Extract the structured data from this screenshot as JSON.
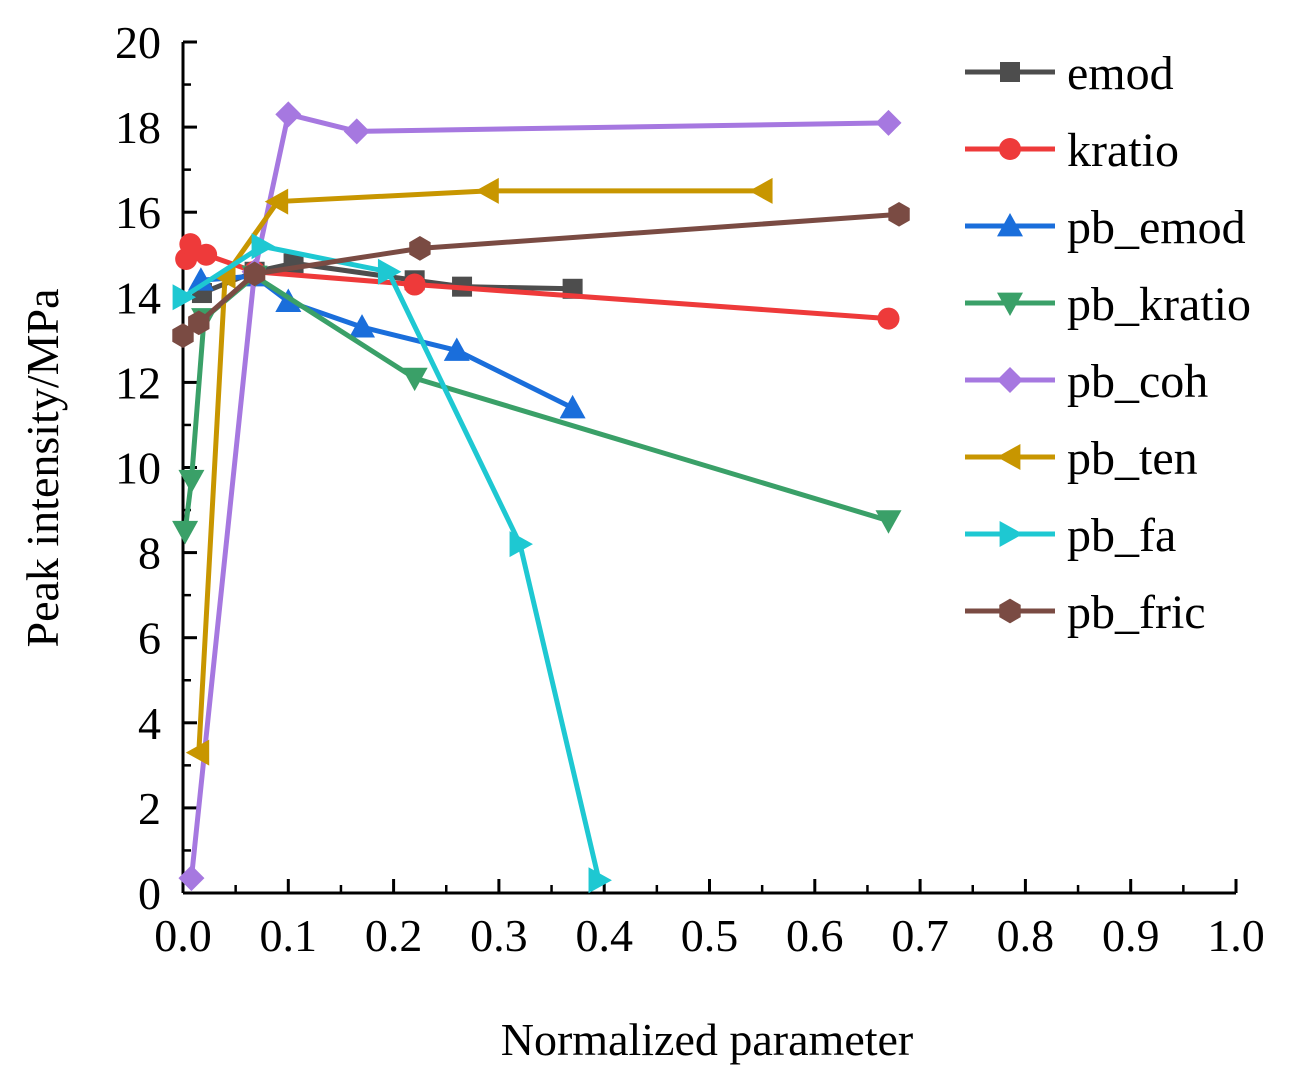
{
  "chart_data": {
    "type": "line",
    "xlabel": "Normalized parameter",
    "ylabel": "Peak intensity/MPa",
    "xlim": [
      0,
      1
    ],
    "ylim": [
      0,
      20
    ],
    "x_ticks": [
      "0.0",
      "0.1",
      "0.2",
      "0.3",
      "0.4",
      "0.5",
      "0.6",
      "0.7",
      "0.8",
      "0.9",
      "1.0"
    ],
    "y_ticks": [
      "0",
      "2",
      "4",
      "6",
      "8",
      "10",
      "12",
      "14",
      "16",
      "18",
      "20"
    ],
    "legend_position": "right",
    "grid": false,
    "series": [
      {
        "name": "emod",
        "color": "#4d4d4d",
        "marker": "square",
        "points": [
          [
            0.018,
            14.1
          ],
          [
            0.068,
            14.6
          ],
          [
            0.105,
            14.8
          ],
          [
            0.22,
            14.4
          ],
          [
            0.265,
            14.25
          ],
          [
            0.37,
            14.2
          ]
        ]
      },
      {
        "name": "kratio",
        "color": "#ee3a3a",
        "marker": "circle",
        "points": [
          [
            0.003,
            14.9
          ],
          [
            0.007,
            15.25
          ],
          [
            0.022,
            15.0
          ],
          [
            0.068,
            14.6
          ],
          [
            0.22,
            14.3
          ],
          [
            0.67,
            13.5
          ]
        ]
      },
      {
        "name": "pb_emod",
        "color": "#1a6edb",
        "marker": "triangle-up",
        "points": [
          [
            0.017,
            14.4
          ],
          [
            0.068,
            14.5
          ],
          [
            0.1,
            13.9
          ],
          [
            0.17,
            13.3
          ],
          [
            0.26,
            12.75
          ],
          [
            0.37,
            11.4
          ]
        ]
      },
      {
        "name": "pb_kratio",
        "color": "#3aa068",
        "marker": "triangle-down",
        "points": [
          [
            0.002,
            8.5
          ],
          [
            0.008,
            9.7
          ],
          [
            0.02,
            13.5
          ],
          [
            0.068,
            14.5
          ],
          [
            0.22,
            12.1
          ],
          [
            0.67,
            8.75
          ]
        ]
      },
      {
        "name": "pb_coh",
        "color": "#a678e0",
        "marker": "diamond",
        "points": [
          [
            0.008,
            0.35
          ],
          [
            0.068,
            14.6
          ],
          [
            0.1,
            18.3
          ],
          [
            0.165,
            17.9
          ],
          [
            0.67,
            18.1
          ]
        ]
      },
      {
        "name": "pb_ten",
        "color": "#c89600",
        "marker": "triangle-left",
        "points": [
          [
            0.015,
            3.3
          ],
          [
            0.04,
            14.5
          ],
          [
            0.09,
            16.25
          ],
          [
            0.29,
            16.5
          ],
          [
            0.55,
            16.5
          ]
        ]
      },
      {
        "name": "pb_fa",
        "color": "#1ec8d2",
        "marker": "triangle-right",
        "points": [
          [
            0.0,
            14.0
          ],
          [
            0.075,
            15.2
          ],
          [
            0.195,
            14.6
          ],
          [
            0.32,
            8.2
          ],
          [
            0.395,
            0.3
          ]
        ]
      },
      {
        "name": "pb_fric",
        "color": "#7a4b43",
        "marker": "hexagon",
        "points": [
          [
            0.0,
            13.1
          ],
          [
            0.015,
            13.4
          ],
          [
            0.068,
            14.55
          ],
          [
            0.225,
            15.15
          ],
          [
            0.68,
            15.95
          ]
        ]
      }
    ]
  }
}
